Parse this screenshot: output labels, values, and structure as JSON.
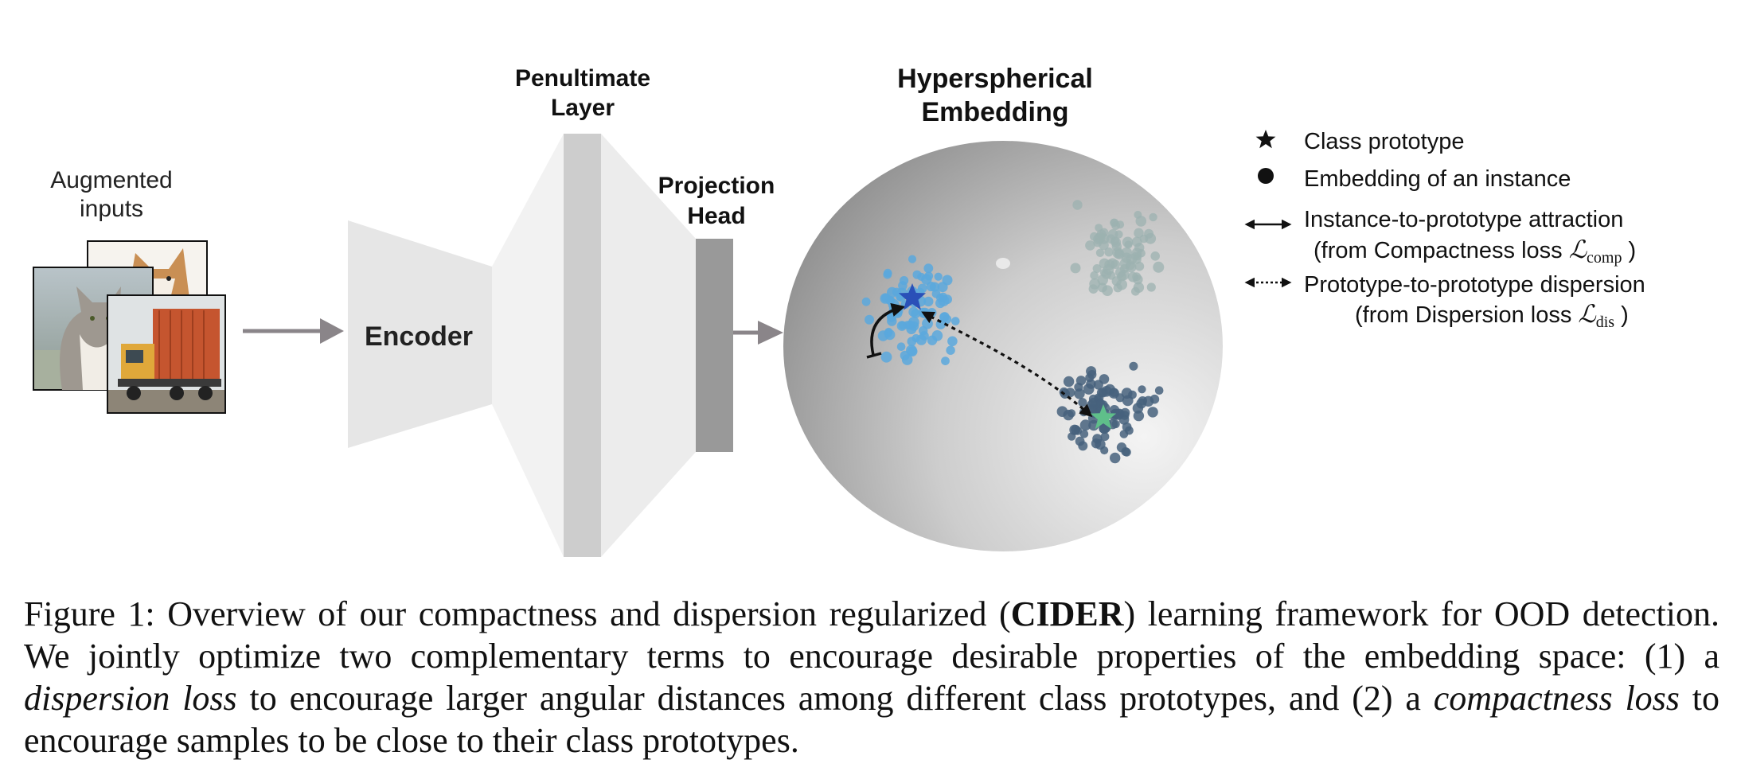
{
  "labels": {
    "augmented_inputs": [
      "Augmented",
      "inputs"
    ],
    "encoder": "Encoder",
    "penultimate_layer": [
      "Penultimate",
      "Layer"
    ],
    "projection_head": [
      "Projection",
      "Head"
    ],
    "hyperspherical_embedding": [
      "Hyperspherical",
      "Embedding"
    ]
  },
  "legend": {
    "class_prototype": "Class prototype",
    "embedding_instance": "Embedding of an instance",
    "attraction": "Instance-to-prototype attraction",
    "attraction_source_prefix": "(from Compactness loss ",
    "attraction_loss_symbol": "ℒ",
    "attraction_loss_sub": "comp",
    "attraction_source_suffix": " )",
    "dispersion": "Prototype-to-prototype dispersion",
    "dispersion_source_prefix": "(from Dispersion loss ",
    "dispersion_loss_symbol": "ℒ",
    "dispersion_loss_sub": "dis",
    "dispersion_source_suffix": " )"
  },
  "caption": {
    "label": "Figure 1:",
    "text_1": "Overview of our compactness and dispersion regularized (",
    "bold": "CIDER",
    "text_2": ") learning framework for OOD detection. We jointly optimize two complementary terms to encourage desirable properties of the embedding space: (1) a ",
    "italic_1": "dispersion loss",
    "text_3": " to encourage larger angular distances among different class prototypes, and (2) a ",
    "italic_2": "compactness loss",
    "text_4": " to encourage samples to be close to their class prototypes."
  },
  "colors": {
    "cluster_light_blue": "#5aa8dd",
    "cluster_dark_blue": "#46617c",
    "cluster_faded": "#9cb2b0",
    "prototype_blue": "#2a50b8",
    "prototype_green": "#5fbf8a",
    "block_light": "#e6e6e6",
    "block_mid": "#cdcdcd",
    "head_gray": "#999999",
    "arrow_gray": "#8a8589"
  }
}
